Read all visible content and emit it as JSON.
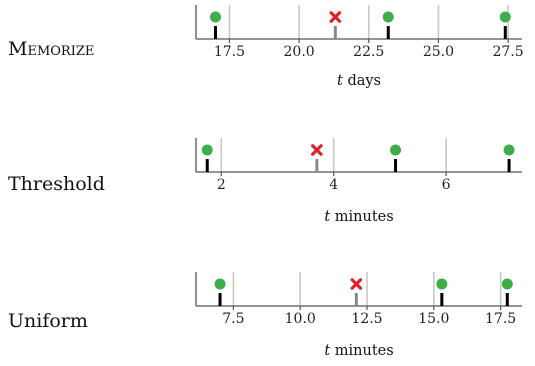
{
  "chart_data": [
    {
      "type": "scatter",
      "title": "",
      "row_label": "Memorize",
      "row_label_style": "small-caps",
      "xlabel_var": "t",
      "xlabel_unit": "days",
      "xlim": [
        16.3,
        28.0
      ],
      "ticks": [
        17.5,
        20.0,
        22.5,
        25.0,
        27.5
      ],
      "tick_labels": [
        "17.5",
        "20.0",
        "22.5",
        "25.0",
        "27.5"
      ],
      "grid": true,
      "series": [
        {
          "marker": "green-circle",
          "values": [
            17.0,
            23.2,
            27.4
          ]
        },
        {
          "marker": "red-cross",
          "values": [
            21.3
          ]
        }
      ]
    },
    {
      "type": "scatter",
      "title": "",
      "row_label": "Threshold",
      "row_label_style": "normal",
      "xlabel_var": "t",
      "xlabel_unit": "minutes",
      "xlim": [
        1.55,
        7.35
      ],
      "ticks": [
        2,
        4,
        6
      ],
      "tick_labels": [
        "2",
        "4",
        "6"
      ],
      "grid": true,
      "series": [
        {
          "marker": "green-circle",
          "values": [
            1.75,
            5.1,
            7.12
          ]
        },
        {
          "marker": "red-cross",
          "values": [
            3.7
          ]
        }
      ]
    },
    {
      "type": "scatter",
      "title": "",
      "row_label": "Uniform",
      "row_label_style": "normal",
      "xlabel_var": "t",
      "xlabel_unit": "minutes",
      "xlim": [
        6.1,
        18.3
      ],
      "ticks": [
        7.5,
        10.0,
        12.5,
        15.0,
        17.5
      ],
      "tick_labels": [
        "7.5",
        "10.0",
        "12.5",
        "15.0",
        "17.5"
      ],
      "grid": true,
      "series": [
        {
          "marker": "green-circle",
          "values": [
            7.0,
            15.3,
            17.75
          ]
        },
        {
          "marker": "red-cross",
          "values": [
            12.1
          ]
        }
      ]
    }
  ],
  "colors": {
    "success_marker": "#3fae49",
    "failure_marker": "#d9232b",
    "grid": "#c8c8c8",
    "axis": "#555555",
    "stem_success": "#000000",
    "stem_failure": "#888888"
  }
}
